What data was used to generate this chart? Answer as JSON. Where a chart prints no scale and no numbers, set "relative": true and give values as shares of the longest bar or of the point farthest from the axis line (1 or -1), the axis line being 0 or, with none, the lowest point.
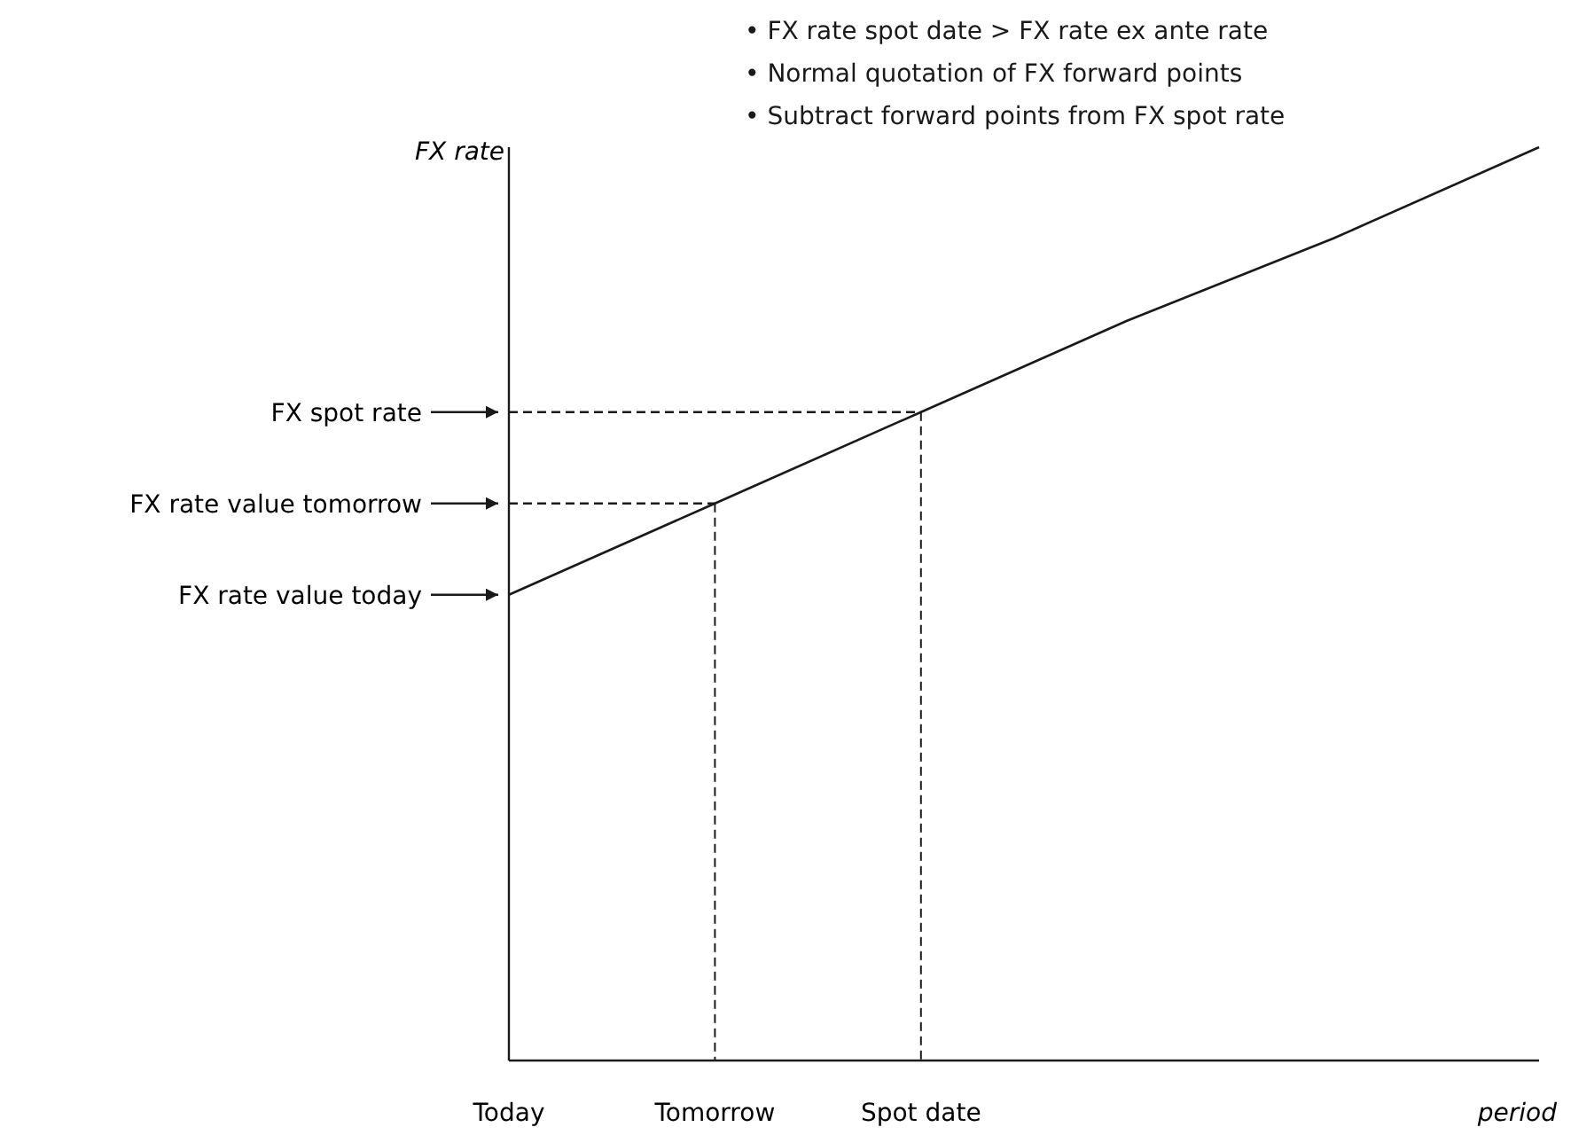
{
  "chart_data": {
    "type": "line",
    "relative": true,
    "ylabel": "FX rate",
    "xlabel": "period",
    "categories": [
      "Today",
      "Tomorrow",
      "Spot date",
      null,
      null,
      null
    ],
    "series": [
      {
        "color": "#1a1a1a",
        "values": [
          0.51,
          0.61,
          0.71,
          0.81,
          0.9,
          1
        ]
      }
    ],
    "ref_lines": [
      {
        "axis": "x",
        "value": "Tomorrow",
        "line_style": "dashed"
      },
      {
        "axis": "x",
        "value": "Spot date",
        "line_style": "dashed"
      },
      {
        "axis": "y",
        "value": 0.71,
        "line_style": "dashed",
        "label": "FX spot rate"
      },
      {
        "axis": "y",
        "value": 0.61,
        "line_style": "dashed",
        "label": "FX rate value tomorrow"
      },
      {
        "axis": "y",
        "value": 0.51,
        "line_style": "solid",
        "label": "FX rate value today"
      }
    ],
    "annotations": [
      "• FX rate spot date > FX rate ex ante rate",
      "• Normal quotation of FX forward points",
      "• Subtract forward points from FX spot rate"
    ],
    "grid": false,
    "marker": "none",
    "line_style": "solid"
  }
}
